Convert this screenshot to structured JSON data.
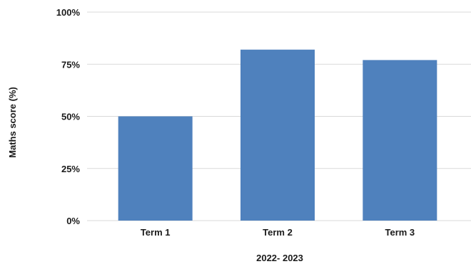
{
  "chart_data": {
    "type": "bar",
    "title": "",
    "xlabel": "2022- 2023",
    "ylabel": "Maths score (%)",
    "categories": [
      "Term 1",
      "Term 2",
      "Term 3"
    ],
    "values": [
      50,
      82,
      77
    ],
    "ylim": [
      0,
      100
    ],
    "yticks": [
      "0%",
      "25%",
      "50%",
      "75%",
      "100%"
    ],
    "ytick_values": [
      0,
      25,
      50,
      75,
      100
    ],
    "grid": true,
    "legend": "none",
    "bar_color": "#4f81bd",
    "grid_color": "#d9d9d9"
  }
}
